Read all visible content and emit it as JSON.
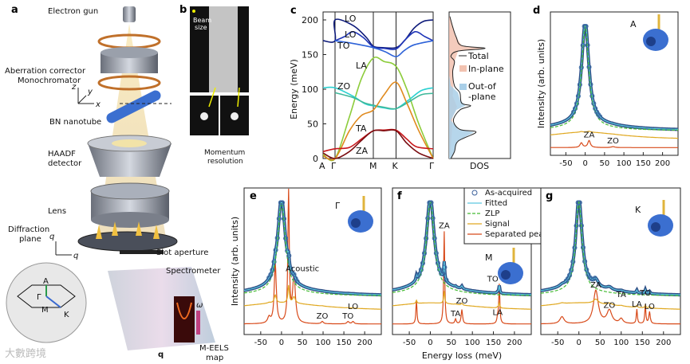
{
  "panels": {
    "a": {
      "letter": "a",
      "labels": {
        "electron_gun": "Electron gun",
        "aberration_corrector": "Aberration corrector",
        "monochromator": "Monochromator",
        "bn_nanotube": "BN nanotube",
        "haadf_1": "HAADF",
        "haadf_2": "detector",
        "lens": "Lens",
        "diffraction_1": "Diffraction",
        "diffraction_2": "plane",
        "slot_aperture": "Slot aperture",
        "spectrometer": "Spectrometer",
        "meels_1": "M-EELS",
        "meels_2": "map",
        "axis_x": "x",
        "axis_y": "y",
        "axis_z": "z",
        "axis_qx": "q",
        "axis_qy": "q",
        "q": "q",
        "omega": "ω",
        "bz_gamma": "Γ",
        "bz_a": "A",
        "bz_m": "M",
        "bz_k": "K"
      }
    },
    "b": {
      "letter": "b",
      "beam_size_1": "Beam",
      "beam_size_2": "size",
      "momentum_1": "Momentum",
      "momentum_2": "resolution"
    },
    "watermark": "大數跨境"
  },
  "chart_data": [
    {
      "id": "c",
      "letter": "c",
      "type": "line",
      "title": "",
      "ylabel": "Energy (meV)",
      "xlabel": "",
      "ylim": [
        0,
        210
      ],
      "yticks": [
        "0",
        "50",
        "100",
        "150",
        "200"
      ],
      "ytick_values": [
        0,
        50,
        100,
        150,
        200
      ],
      "xtick_labels": [
        "A",
        "Γ",
        "M",
        "K",
        "Γ"
      ],
      "xtick_positions": [
        0,
        1,
        4.2,
        6.1,
        9.2
      ],
      "series": [
        {
          "name": "LO",
          "label": "LO",
          "color": "#0d1a7a",
          "points": [
            [
              0,
              170
            ],
            [
              1,
              170
            ],
            [
              1,
              200
            ],
            [
              2.5,
              192
            ],
            [
              3.6,
              175
            ],
            [
              4.2,
              162
            ],
            [
              5,
              160
            ],
            [
              6.1,
              160
            ],
            [
              6.8,
              170
            ],
            [
              7.6,
              188
            ],
            [
              8.4,
              198
            ],
            [
              9.2,
              200
            ]
          ]
        },
        {
          "name": "LO",
          "label": "LO",
          "color": "#1f35b8",
          "points": [
            [
              1,
              170
            ],
            [
              1.8,
              176
            ],
            [
              2.5,
              183
            ],
            [
              3.4,
              174
            ],
            [
              4.2,
              161
            ],
            [
              5.1,
              159
            ],
            [
              6.1,
              158
            ],
            [
              6.9,
              172
            ],
            [
              7.7,
              183
            ],
            [
              8.5,
              176
            ],
            [
              9.2,
              170
            ]
          ]
        },
        {
          "name": "TO",
          "label": "TO",
          "color": "#2d62d8",
          "points": [
            [
              1,
              170
            ],
            [
              2.5,
              166
            ],
            [
              4.2,
              160
            ],
            [
              5.2,
              154
            ],
            [
              6.1,
              147
            ],
            [
              6.8,
              156
            ],
            [
              7.6,
              164
            ],
            [
              9.2,
              170
            ]
          ]
        },
        {
          "name": "LA",
          "label": "LA",
          "color": "#8ccc3a",
          "points": [
            [
              0,
              6
            ],
            [
              1,
              0
            ],
            [
              2.2,
              60
            ],
            [
              3.2,
              115
            ],
            [
              4.2,
              145
            ],
            [
              5.1,
              140
            ],
            [
              6.1,
              133
            ],
            [
              7,
              100
            ],
            [
              8,
              50
            ],
            [
              9.2,
              0
            ]
          ]
        },
        {
          "name": "ZO",
          "label": "ZO",
          "color": "#2ad0d0",
          "points": [
            [
              0,
              102
            ],
            [
              1,
              102
            ],
            [
              2.5,
              90
            ],
            [
              3.5,
              79
            ],
            [
              4.2,
              76
            ],
            [
              5.1,
              73
            ],
            [
              6.1,
              72
            ],
            [
              7.2,
              85
            ],
            [
              8.2,
              98
            ],
            [
              9.2,
              102
            ]
          ]
        },
        {
          "name": "ZO2",
          "label": "",
          "color": "#3fb89a",
          "points": [
            [
              1,
              95
            ],
            [
              2.5,
              88
            ],
            [
              3.5,
              80
            ],
            [
              4.2,
              77
            ],
            [
              5.1,
              74
            ],
            [
              6.1,
              72
            ],
            [
              7.2,
              82
            ],
            [
              8.2,
              92
            ],
            [
              9.2,
              94
            ]
          ]
        },
        {
          "name": "TA",
          "label": "TA",
          "color": "#e08a1e",
          "points": [
            [
              0,
              4
            ],
            [
              1,
              0
            ],
            [
              2.2,
              40
            ],
            [
              3.2,
              62
            ],
            [
              4.2,
              70
            ],
            [
              5.1,
              92
            ],
            [
              6.1,
              110
            ],
            [
              7,
              80
            ],
            [
              8,
              40
            ],
            [
              9.2,
              0
            ]
          ]
        },
        {
          "name": "ZA",
          "label": "ZA",
          "color": "#c8181c",
          "points": [
            [
              0,
              10
            ],
            [
              1,
              14
            ],
            [
              2.2,
              16
            ],
            [
              3.2,
              28
            ],
            [
              4.2,
              40
            ],
            [
              5.1,
              41
            ],
            [
              6.1,
              41
            ],
            [
              7,
              28
            ],
            [
              7.8,
              17
            ],
            [
              9.2,
              14
            ]
          ]
        },
        {
          "name": "ZA2",
          "label": "",
          "color": "#7a0c10",
          "points": [
            [
              0,
              8
            ],
            [
              1,
              0
            ],
            [
              2.2,
              10
            ],
            [
              3.2,
              26
            ],
            [
              4.2,
              40
            ],
            [
              5.1,
              40
            ],
            [
              6.1,
              40
            ],
            [
              7,
              22
            ],
            [
              8,
              8
            ],
            [
              9.2,
              0
            ]
          ]
        }
      ]
    },
    {
      "id": "c-dos",
      "type": "area",
      "xlabel": "DOS",
      "legend": [
        {
          "name": "Total",
          "color": "#222222"
        },
        {
          "name": "In-plane",
          "color": "#f2c2b0"
        },
        {
          "name": "Out-of\n-plane",
          "name_1": "Out-of",
          "name_2": "-plane",
          "color": "#a9cfe8"
        }
      ],
      "legend_position": "right",
      "total": [
        [
          0,
          0.05
        ],
        [
          10,
          0.15
        ],
        [
          25,
          0.25
        ],
        [
          38,
          0.75
        ],
        [
          42,
          0.3
        ],
        [
          55,
          0.12
        ],
        [
          70,
          0.3
        ],
        [
          76,
          0.6
        ],
        [
          80,
          0.35
        ],
        [
          95,
          0.3
        ],
        [
          105,
          0.15
        ],
        [
          125,
          0.1
        ],
        [
          140,
          0.15
        ],
        [
          148,
          0.05
        ],
        [
          155,
          0.25
        ],
        [
          159,
          1.0
        ],
        [
          163,
          0.35
        ],
        [
          175,
          0.2
        ],
        [
          190,
          0.1
        ],
        [
          205,
          0.02
        ]
      ],
      "in_plane": [
        [
          0,
          0.02
        ],
        [
          20,
          0.05
        ],
        [
          40,
          0.08
        ],
        [
          60,
          0.1
        ],
        [
          75,
          0.22
        ],
        [
          90,
          0.1
        ],
        [
          105,
          0.12
        ],
        [
          125,
          0.1
        ],
        [
          140,
          0.15
        ],
        [
          155,
          0.25
        ],
        [
          159,
          0.95
        ],
        [
          163,
          0.35
        ],
        [
          175,
          0.2
        ],
        [
          190,
          0.1
        ],
        [
          205,
          0.02
        ]
      ],
      "out_of_plane": [
        [
          0,
          0.05
        ],
        [
          10,
          0.15
        ],
        [
          25,
          0.22
        ],
        [
          38,
          0.7
        ],
        [
          42,
          0.25
        ],
        [
          55,
          0.05
        ],
        [
          70,
          0.2
        ],
        [
          76,
          0.45
        ],
        [
          85,
          0.3
        ],
        [
          95,
          0.25
        ],
        [
          105,
          0.05
        ],
        [
          120,
          0
        ]
      ]
    },
    {
      "id": "d",
      "letter": "d",
      "type": "line",
      "point_label": "A",
      "ylabel": "Intensity (arb. units)",
      "xlim": [
        -90,
        240
      ],
      "xticks": [
        "-50",
        "0",
        "50",
        "100",
        "150",
        "200"
      ],
      "xtick_values": [
        -50,
        0,
        50,
        100,
        150,
        200
      ],
      "tail": 0.18,
      "peaks": [
        {
          "label": "ZA",
          "energy": 10,
          "amp": 0.06,
          "width": 4
        },
        {
          "label": "",
          "energy": -10,
          "amp": 0.04,
          "width": 4
        },
        {
          "label": "ZO",
          "energy": 72,
          "amp": 0.008,
          "width": 5
        }
      ]
    },
    {
      "id": "e",
      "letter": "e",
      "type": "line",
      "point_label": "Γ",
      "ylabel": "Intensity (arb. units)",
      "xlim": [
        -90,
        240
      ],
      "xticks": [
        "-50",
        "0",
        "50",
        "100",
        "150",
        "200"
      ],
      "xtick_values": [
        -50,
        0,
        50,
        100,
        150,
        200
      ],
      "annotation": "Acoustic",
      "tail": 0.2,
      "peaks": [
        {
          "label": "",
          "energy": -15,
          "amp": 0.5,
          "width": 3
        },
        {
          "label": "",
          "energy": 17,
          "amp": 1.1,
          "width": 2
        },
        {
          "label": "",
          "energy": 30,
          "amp": 0.4,
          "width": 4
        },
        {
          "label": "ZO",
          "energy": 98,
          "amp": 0.02,
          "width": 3
        },
        {
          "label": "TO",
          "energy": 160,
          "amp": 0.02,
          "width": 3
        },
        {
          "label": "LO",
          "energy": 172,
          "amp": 0.02,
          "width": 3
        },
        {
          "label": "",
          "energy": -30,
          "amp": 0.05,
          "width": 4
        }
      ]
    },
    {
      "id": "f",
      "letter": "f",
      "type": "line",
      "point_label": "M",
      "xlabel": "Energy loss (meV)",
      "xlim": [
        -90,
        240
      ],
      "xticks": [
        "-50",
        "0",
        "50",
        "100",
        "150",
        "200"
      ],
      "xtick_values": [
        -50,
        0,
        50,
        100,
        150,
        200
      ],
      "tail": 0.25,
      "legend": [
        {
          "name": "As-acquired",
          "color": "#3a5f9a",
          "style": "circle"
        },
        {
          "name": "Fitted",
          "color": "#5cc8e0",
          "style": "solid"
        },
        {
          "name": "ZLP",
          "color": "#44bb33",
          "style": "dashed"
        },
        {
          "name": "Signal",
          "color": "#e0a820",
          "style": "solid"
        },
        {
          "name": "Separated peaks",
          "color": "#d84a1a",
          "style": "solid"
        }
      ],
      "legend_position": "top-right",
      "peaks": [
        {
          "label": "",
          "energy": -33,
          "amp": 0.2,
          "width": 1.5
        },
        {
          "label": "ZA",
          "energy": 33,
          "amp": 0.78,
          "width": 1.5
        },
        {
          "label": "TA",
          "energy": 60,
          "amp": 0.04,
          "width": 2
        },
        {
          "label": "ZO",
          "energy": 75,
          "amp": 0.12,
          "width": 2
        },
        {
          "label": "LA",
          "energy": 160,
          "amp": 0.05,
          "width": 2
        },
        {
          "label": "TO LO",
          "energy": 164,
          "amp": 0.33,
          "width": 1.5
        }
      ]
    },
    {
      "id": "g",
      "letter": "g",
      "type": "line",
      "point_label": "K",
      "xlim": [
        -90,
        240
      ],
      "xticks": [
        "-50",
        "0",
        "50",
        "100",
        "150",
        "200"
      ],
      "xtick_values": [
        -50,
        0,
        50,
        100,
        150,
        200
      ],
      "tail": 0.22,
      "peaks": [
        {
          "label": "",
          "energy": -40,
          "amp": 0.06,
          "width": 6
        },
        {
          "label": "ZA",
          "energy": 40,
          "amp": 0.28,
          "width": 7
        },
        {
          "label": "ZO",
          "energy": 72,
          "amp": 0.11,
          "width": 7
        },
        {
          "label": "TA",
          "energy": 100,
          "amp": 0.04,
          "width": 5
        },
        {
          "label": "LA",
          "energy": 137,
          "amp": 0.12,
          "width": 1.5
        },
        {
          "label": "TO",
          "energy": 157,
          "amp": 0.16,
          "width": 1.5
        },
        {
          "label": "LO",
          "energy": 167,
          "amp": 0.1,
          "width": 2
        }
      ]
    }
  ],
  "colors": {
    "gold": "#e0b43c",
    "tube": "#3b6fd0",
    "raw": "#2f4f86",
    "fit": "#5cc8e0",
    "zlp": "#44bb33",
    "signal": "#e0a820",
    "peaks": "#d84a1a"
  }
}
